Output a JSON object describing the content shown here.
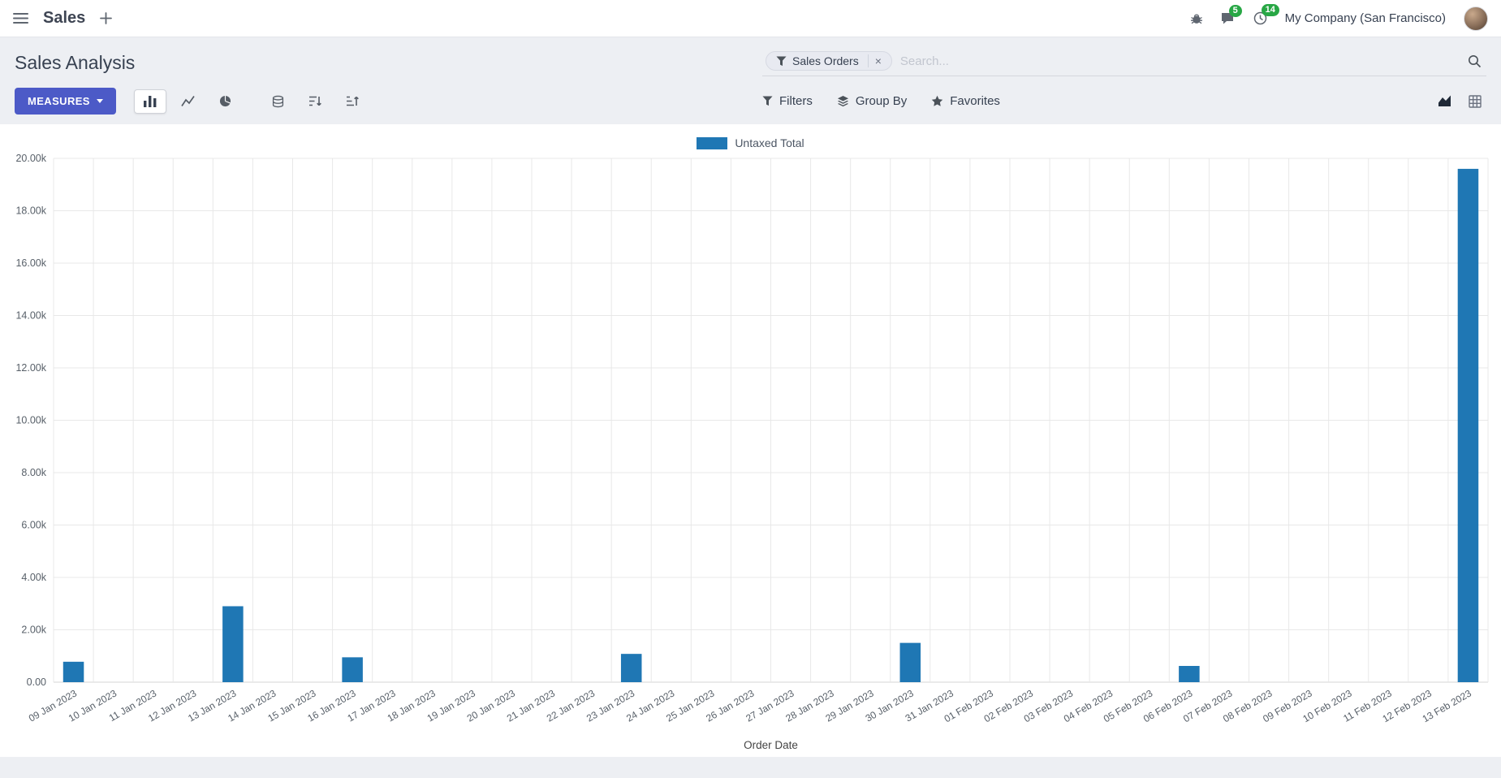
{
  "colors": {
    "accent": "#4c5ac7",
    "bar": "#1f77b4",
    "badge_green": "#28a745"
  },
  "navbar": {
    "app_name": "Sales",
    "company": "My Company (San Francisco)",
    "messages_badge": "5",
    "activities_badge": "14"
  },
  "control_panel": {
    "title": "Sales Analysis",
    "measures_label": "MEASURES",
    "search": {
      "facet_label": "Sales Orders",
      "remove_label": "×",
      "placeholder": "Search..."
    },
    "buttons": {
      "filters": "Filters",
      "group_by": "Group By",
      "favorites": "Favorites"
    }
  },
  "chart_data": {
    "type": "bar",
    "title": "",
    "series_name": "Untaxed Total",
    "color": "#1f77b4",
    "xlabel": "Order Date",
    "ylabel": "",
    "ylim": [
      0,
      20000
    ],
    "grid": true,
    "legend_position": "top",
    "y_ticks": [
      "0.00",
      "2.00k",
      "4.00k",
      "6.00k",
      "8.00k",
      "10.00k",
      "12.00k",
      "14.00k",
      "16.00k",
      "18.00k",
      "20.00k"
    ],
    "categories": [
      "09 Jan 2023",
      "10 Jan 2023",
      "11 Jan 2023",
      "12 Jan 2023",
      "13 Jan 2023",
      "14 Jan 2023",
      "15 Jan 2023",
      "16 Jan 2023",
      "17 Jan 2023",
      "18 Jan 2023",
      "19 Jan 2023",
      "20 Jan 2023",
      "21 Jan 2023",
      "22 Jan 2023",
      "23 Jan 2023",
      "24 Jan 2023",
      "25 Jan 2023",
      "26 Jan 2023",
      "27 Jan 2023",
      "28 Jan 2023",
      "29 Jan 2023",
      "30 Jan 2023",
      "31 Jan 2023",
      "01 Feb 2023",
      "02 Feb 2023",
      "03 Feb 2023",
      "04 Feb 2023",
      "05 Feb 2023",
      "06 Feb 2023",
      "07 Feb 2023",
      "08 Feb 2023",
      "09 Feb 2023",
      "10 Feb 2023",
      "11 Feb 2023",
      "12 Feb 2023",
      "13 Feb 2023"
    ],
    "values": [
      780,
      0,
      0,
      0,
      2900,
      0,
      0,
      950,
      0,
      0,
      0,
      0,
      0,
      0,
      1080,
      0,
      0,
      0,
      0,
      0,
      0,
      1500,
      0,
      0,
      0,
      0,
      0,
      0,
      620,
      0,
      0,
      0,
      0,
      0,
      0,
      19600
    ]
  }
}
